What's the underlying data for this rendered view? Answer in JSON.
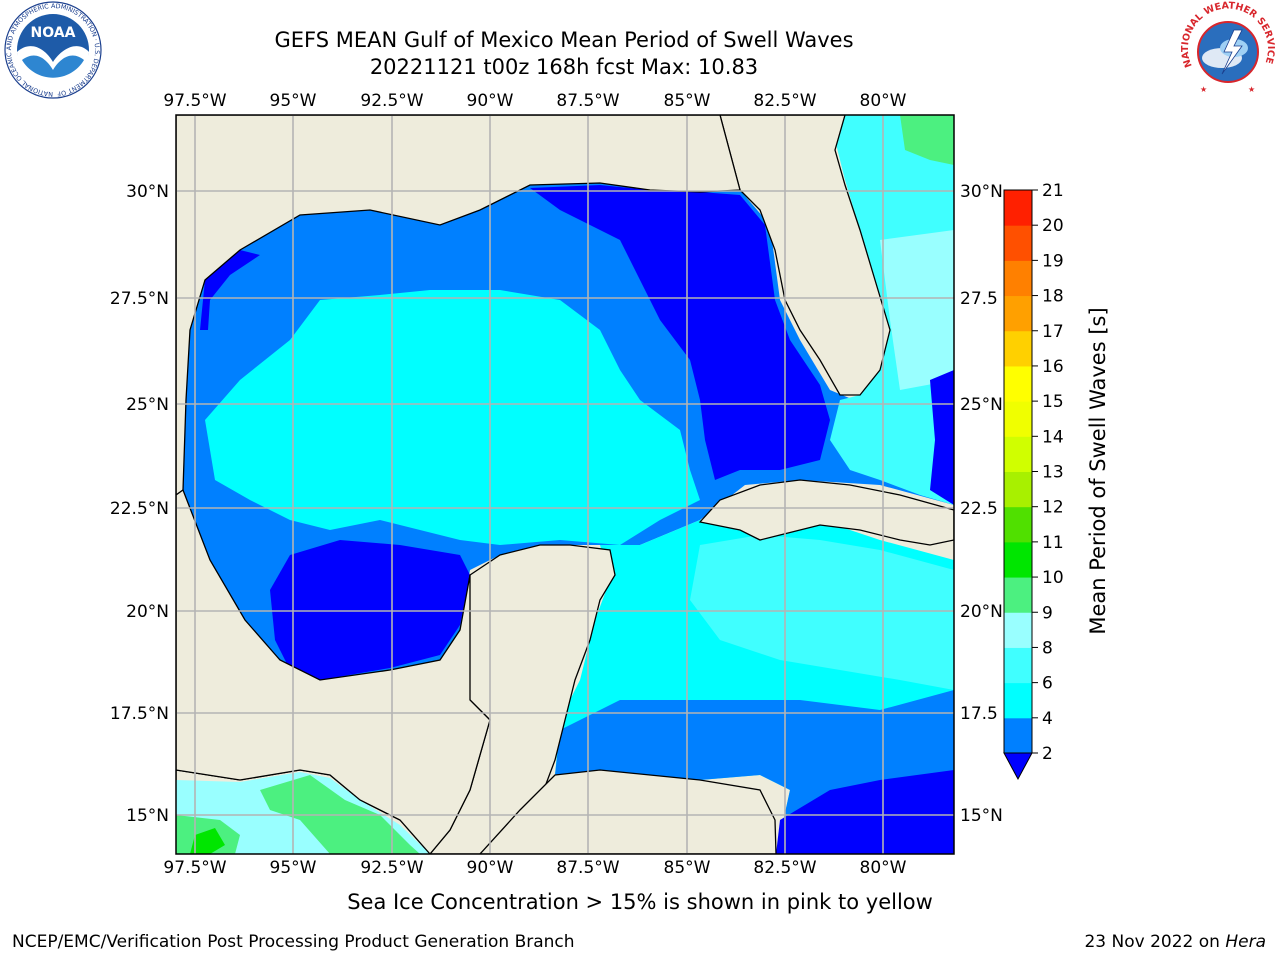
{
  "header": {
    "title_line1": "GEFS MEAN Gulf of Mexico Mean Period of Swell Waves",
    "title_line2": "20221121 t00z 168h fcst   Max: 10.83"
  },
  "logos": {
    "noaa_text": "NOAA",
    "noaa_ring_text": "NATIONAL OCEANIC AND ATMOSPHERIC ADMINISTRATION · U.S. DEPARTMENT OF COMMERCE",
    "nws_ring_text": "NATIONAL WEATHER SERVICE"
  },
  "map": {
    "lon_ticks": [
      "97.5°W",
      "95°W",
      "92.5°W",
      "90°W",
      "87.5°W",
      "85°W",
      "82.5°W",
      "80°W"
    ],
    "lat_ticks_left": [
      "30°N",
      "27.5°N",
      "25°N",
      "22.5°N",
      "20°N",
      "17.5°N",
      "15°N"
    ],
    "lat_ticks_right": [
      "30°N",
      "27.5",
      "25°N",
      "22.5",
      "20°N",
      "17.5",
      "15°N"
    ],
    "land_color": "#eeecdc",
    "grid_color": "#b4b4b4"
  },
  "colorbar": {
    "label": "Mean Period of Swell Waves [s]",
    "ticks": [
      "2",
      "4",
      "6",
      "8",
      "9",
      "10",
      "11",
      "12",
      "13",
      "14",
      "15",
      "16",
      "17",
      "18",
      "19",
      "20",
      "21"
    ],
    "colors": [
      "#0000ff",
      "#0080ff",
      "#00ffff",
      "#40ffff",
      "#99ffff",
      "#4cf080",
      "#00e600",
      "#50e000",
      "#a8f000",
      "#d0ff00",
      "#f0ff00",
      "#ffff00",
      "#ffd000",
      "#ffa000",
      "#ff8000",
      "#ff5000",
      "#ff2000",
      "#ff0000"
    ]
  },
  "footer": {
    "note": "Sea Ice Concentration > 15% is shown in pink to yellow",
    "left": "NCEP/EMC/Verification Post Processing Product Generation Branch",
    "date": "23 Nov 2022 on",
    "host": "Hera"
  }
}
